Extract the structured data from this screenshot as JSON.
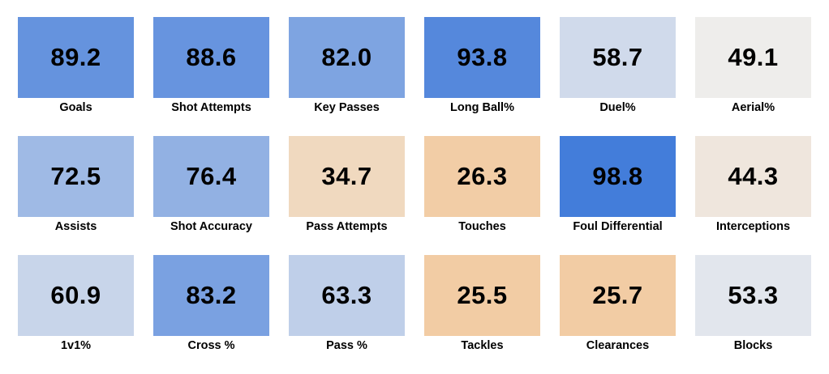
{
  "chart_data": {
    "type": "heatmap",
    "title": "",
    "colors": {
      "high": "#3f7ada",
      "mid": "#eeeeee",
      "low": "#f2cba2"
    },
    "scale": {
      "min": 0,
      "mid": 50,
      "max": 100
    },
    "rows": 3,
    "columns": 6,
    "cells": [
      {
        "label": "Goals",
        "value": 89.2
      },
      {
        "label": "Shot Attempts",
        "value": 88.6
      },
      {
        "label": "Key Passes",
        "value": 82.0
      },
      {
        "label": "Long Ball%",
        "value": 93.8
      },
      {
        "label": "Duel%",
        "value": 58.7
      },
      {
        "label": "Aerial%",
        "value": 49.1
      },
      {
        "label": "Assists",
        "value": 72.5
      },
      {
        "label": "Shot Accuracy",
        "value": 76.4
      },
      {
        "label": "Pass Attempts",
        "value": 34.7
      },
      {
        "label": "Touches",
        "value": 26.3
      },
      {
        "label": "Foul Differential",
        "value": 98.8
      },
      {
        "label": "Interceptions",
        "value": 44.3
      },
      {
        "label": "1v1%",
        "value": 60.9
      },
      {
        "label": "Cross %",
        "value": 83.2
      },
      {
        "label": "Pass %",
        "value": 63.3
      },
      {
        "label": "Tackles",
        "value": 25.5
      },
      {
        "label": "Clearances",
        "value": 25.7
      },
      {
        "label": "Blocks",
        "value": 53.3
      }
    ]
  }
}
